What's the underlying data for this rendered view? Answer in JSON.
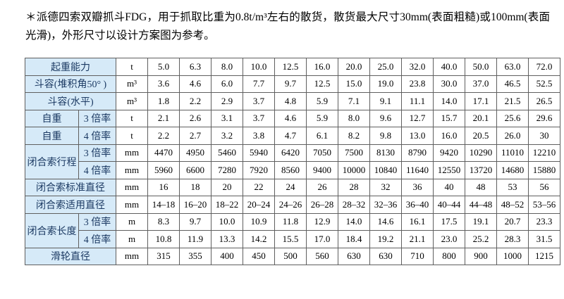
{
  "intro": {
    "text": "＊派德四索双瓣抓斗FDG，用于抓取比重为0.8t/m³左右的散货，散货最大尺寸30mm(表面粗糙)或100mm(表面光滑)，外形尺寸以设计方案图为参考。"
  },
  "colors": {
    "label_bg": "#d6eaf8",
    "label_text": "#1c3a63",
    "border": "#5f5f5f",
    "data_text": "#000000",
    "page_bg": "#ffffff"
  },
  "table": {
    "rows": [
      {
        "label": "起重能力",
        "sub": null,
        "rowspan": 1,
        "unit": "t",
        "values": [
          "5.0",
          "6.3",
          "8.0",
          "10.0",
          "12.5",
          "16.0",
          "20.0",
          "25.0",
          "32.0",
          "40.0",
          "50.0",
          "63.0",
          "72.0"
        ]
      },
      {
        "label": "斗容(堆积角50° )",
        "sub": null,
        "rowspan": 1,
        "unit": "m³",
        "values": [
          "3.6",
          "4.6",
          "6.0",
          "7.7",
          "9.7",
          "12.5",
          "15.0",
          "19.0",
          "23.8",
          "30.0",
          "37.0",
          "46.5",
          "52.5"
        ]
      },
      {
        "label": "斗容(水平)",
        "sub": null,
        "rowspan": 1,
        "unit": "m³",
        "values": [
          "1.8",
          "2.2",
          "2.9",
          "3.7",
          "4.8",
          "5.9",
          "7.1",
          "9.1",
          "11.1",
          "14.0",
          "17.1",
          "21.5",
          "26.5"
        ]
      },
      {
        "label": "自重",
        "sub": "3 倍率",
        "rowspan": 1,
        "unit": "t",
        "values": [
          "2.1",
          "2.6",
          "3.1",
          "3.7",
          "4.6",
          "5.9",
          "8.0",
          "9.6",
          "12.7",
          "15.7",
          "20.1",
          "25.6",
          "29.6"
        ]
      },
      {
        "label": "自重",
        "sub": "4 倍率",
        "rowspan": 1,
        "unit": "t",
        "values": [
          "2.2",
          "2.7",
          "3.2",
          "3.8",
          "4.7",
          "6.1",
          "8.2",
          "9.8",
          "13.0",
          "16.0",
          "20.5",
          "26.0",
          "30"
        ]
      },
      {
        "label": "闭合索行程",
        "sub": "3 倍率",
        "rowspan": 2,
        "unit": "mm",
        "values": [
          "4470",
          "4950",
          "5460",
          "5940",
          "6420",
          "7050",
          "7500",
          "8130",
          "8790",
          "9420",
          "10290",
          "11010",
          "12210"
        ]
      },
      {
        "label": null,
        "sub": "4 倍率",
        "rowspan": 1,
        "unit": "mm",
        "values": [
          "5960",
          "6600",
          "7280",
          "7920",
          "8560",
          "9400",
          "10000",
          "10840",
          "11640",
          "12550",
          "13720",
          "14680",
          "15880"
        ]
      },
      {
        "label": "闭合索标准直径",
        "sub": null,
        "rowspan": 1,
        "unit": "mm",
        "values": [
          "16",
          "18",
          "20",
          "22",
          "24",
          "26",
          "28",
          "32",
          "36",
          "40",
          "48",
          "53",
          "56"
        ]
      },
      {
        "label": "闭合索适用直径",
        "sub": null,
        "rowspan": 1,
        "unit": "mm",
        "values": [
          "14–18",
          "16–20",
          "18–22",
          "20–24",
          "24–26",
          "26–28",
          "28–32",
          "32–36",
          "36–40",
          "40–44",
          "44–48",
          "48–52",
          "53–56"
        ]
      },
      {
        "label": "闭合索长度",
        "sub": "3 倍率",
        "rowspan": 2,
        "unit": "m",
        "values": [
          "8.3",
          "9.7",
          "10.0",
          "10.9",
          "11.8",
          "12.9",
          "14.0",
          "14.6",
          "16.1",
          "17.5",
          "19.1",
          "20.7",
          "23.3"
        ]
      },
      {
        "label": null,
        "sub": "4 倍率",
        "rowspan": 1,
        "unit": "m",
        "values": [
          "10.8",
          "11.9",
          "13.3",
          "14.2",
          "15.5",
          "17.0",
          "18.4",
          "19.2",
          "21.1",
          "23.0",
          "25.2",
          "28.3",
          "31.5"
        ]
      },
      {
        "label": "滑轮直径",
        "sub": null,
        "rowspan": 1,
        "unit": "mm",
        "values": [
          "315",
          "355",
          "400",
          "450",
          "500",
          "560",
          "630",
          "630",
          "710",
          "800",
          "900",
          "1000",
          "1215"
        ]
      }
    ],
    "layout": {
      "label_col1_width": 76,
      "label_col2_width": 53,
      "unit_col_width": 45,
      "data_col_width": 45,
      "data_col_count": 13
    }
  }
}
